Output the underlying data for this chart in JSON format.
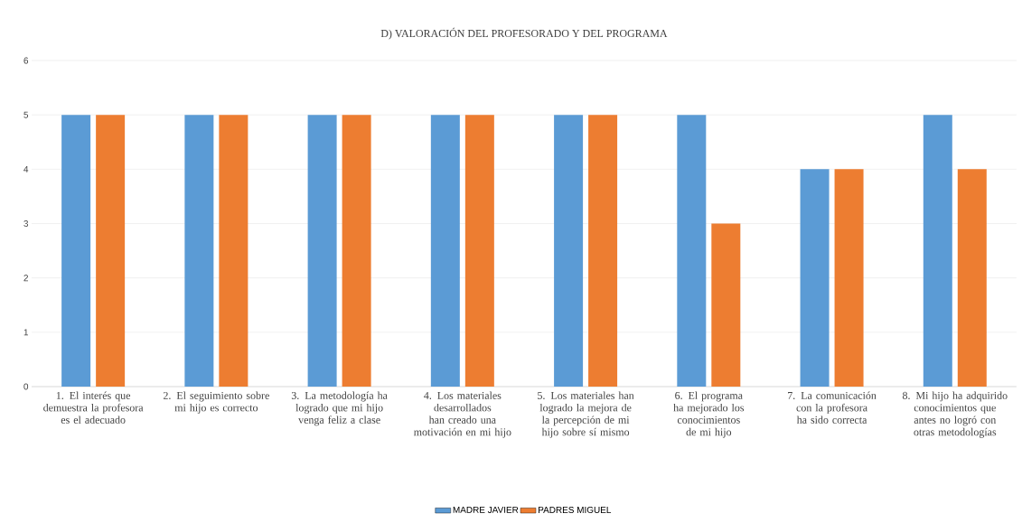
{
  "chart_data": {
    "type": "bar",
    "title": "D) VALORACIÓN DEL PROFESORADO Y DEL PROGRAMA",
    "categories": [
      "1. El interés que demuestra la profesora es el adecuado",
      "2. El seguimiento sobre mi hijo es correcto",
      "3. La metodología ha logrado que mi hijo venga feliz a clase",
      "4. Los materiales desarrollados han creado una motivación en mi hijo",
      "5. Los materiales han logrado la mejora de la percepción de mi hijo sobre sí mismo",
      "6. El programa ha mejorado los conocimientos de mi hijo",
      "7. La comunicación con la profesora ha sido correcta",
      "8. Mi hijo ha adquirido conocimientos que antes no logró con otras metodologías"
    ],
    "series": [
      {
        "name": "MADRE JAVIER",
        "color": "#5b9bd5",
        "values": [
          5,
          5,
          5,
          5,
          5,
          5,
          4,
          5
        ]
      },
      {
        "name": "PADRES MIGUEL",
        "color": "#ed7d31",
        "values": [
          5,
          5,
          5,
          5,
          5,
          3,
          4,
          4
        ]
      }
    ],
    "ylim": [
      0,
      6
    ],
    "yticks": [
      0,
      1,
      2,
      3,
      4,
      5,
      6
    ],
    "grid": "y",
    "legend": "bottom"
  }
}
